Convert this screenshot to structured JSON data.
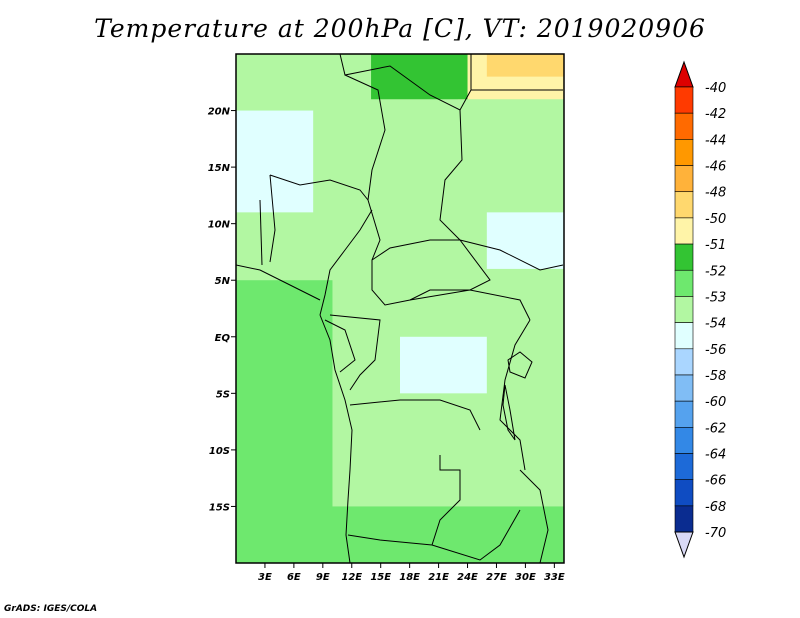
{
  "chart_data": {
    "type": "heatmap",
    "title": "Temperature at 200hPa [C], VT: 2019020906",
    "variable": "Temperature",
    "units": "C",
    "level": "200hPa",
    "valid_time": "2019020906",
    "x_axis": {
      "range": [
        0,
        34
      ],
      "ticks": [
        3,
        6,
        9,
        12,
        15,
        18,
        21,
        24,
        27,
        30,
        33
      ],
      "tick_labels": [
        "3E",
        "6E",
        "9E",
        "12E",
        "15E",
        "18E",
        "21E",
        "24E",
        "27E",
        "30E",
        "33E"
      ]
    },
    "y_axis": {
      "range": [
        -20,
        25
      ],
      "ticks": [
        20,
        15,
        10,
        5,
        0,
        -5,
        -10,
        -15
      ],
      "tick_labels": [
        "20N",
        "15N",
        "10N",
        "5N",
        "EQ",
        "5S",
        "10S",
        "15S"
      ]
    },
    "colorbar": {
      "labels": [
        "-40",
        "-42",
        "-44",
        "-46",
        "-48",
        "-50",
        "-51",
        "-52",
        "-53",
        "-54",
        "-56",
        "-58",
        "-60",
        "-62",
        "-64",
        "-66",
        "-68",
        "-70"
      ],
      "colors": [
        "#ff0000",
        "#ff3a00",
        "#ff6a00",
        "#ff9800",
        "#ffb23a",
        "#ffd86e",
        "#fff4a8",
        "#33c433",
        "#6ee86e",
        "#b2f7a2",
        "#e0ffff",
        "#aad6ff",
        "#80bdf5",
        "#55a2ee",
        "#3388e6",
        "#1d6ad8",
        "#0f4cc2",
        "#0a2c90",
        "#000d5a"
      ],
      "min_arrow_color": "#d9d9f5",
      "max_arrow_color": "#dd0000"
    },
    "regions": [
      {
        "lon_range": [
          0,
          34
        ],
        "lat_range": [
          -20,
          25
        ],
        "category": "-53"
      },
      {
        "lon_range": [
          23,
          34
        ],
        "lat_range": [
          21,
          25
        ],
        "category": "-50"
      },
      {
        "lon_range": [
          26,
          34
        ],
        "lat_range": [
          23,
          25
        ],
        "category": "-48"
      },
      {
        "lon_range": [
          14,
          24
        ],
        "lat_range": [
          21,
          25
        ],
        "category": "-51"
      },
      {
        "lon_range": [
          0,
          8
        ],
        "lat_range": [
          11,
          20
        ],
        "category": "-54"
      },
      {
        "lon_range": [
          26,
          34
        ],
        "lat_range": [
          6,
          11
        ],
        "category": "-54"
      },
      {
        "lon_range": [
          17,
          26
        ],
        "lat_range": [
          -5,
          0
        ],
        "category": "-54"
      },
      {
        "lon_range": [
          0,
          34
        ],
        "lat_range": [
          -20,
          -15
        ],
        "category": "-52"
      },
      {
        "lon_range": [
          0,
          10
        ],
        "lat_range": [
          -20,
          5
        ],
        "category": "-52"
      }
    ]
  },
  "credit": "GrADS: IGES/COLA"
}
